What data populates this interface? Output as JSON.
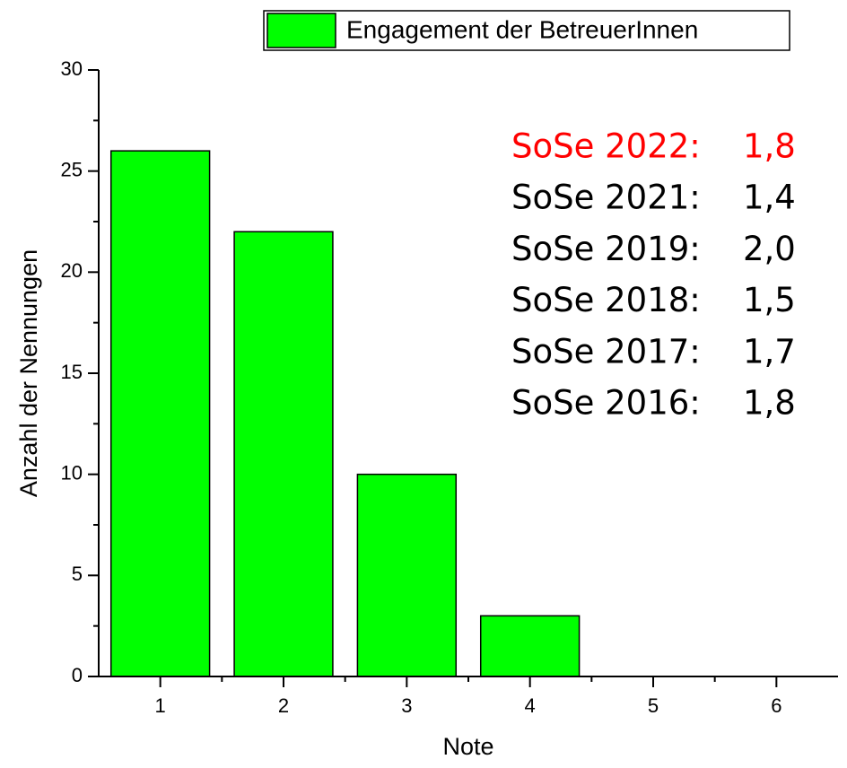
{
  "chart_data": {
    "type": "bar",
    "x": [
      1,
      2,
      3,
      4,
      5,
      6
    ],
    "series": [
      {
        "name": "Engagement der BetreuerInnen",
        "color": "#00ff00",
        "values": [
          26,
          22,
          10,
          3,
          0,
          0
        ]
      }
    ],
    "xlim": [
      0.5,
      6.5
    ],
    "xticks": [
      1,
      2,
      3,
      4,
      5,
      6
    ],
    "xticks_minor": [
      1.5,
      2.5,
      3.5,
      4.5,
      5.5
    ],
    "ylim": [
      0,
      30
    ],
    "yticks": [
      0,
      5,
      10,
      15,
      20,
      25,
      30
    ],
    "yticks_minor": [
      2.5,
      7.5,
      12.5,
      17.5,
      22.5,
      27.5
    ],
    "xlabel": "Note",
    "ylabel": "Anzahl der Nennungen",
    "legend": "top",
    "annotations": [
      {
        "term": "SoSe 2022:",
        "text": "1,8",
        "color": "#ff0000"
      },
      {
        "term": "SoSe 2021:",
        "text": "1,4",
        "color": "#000000"
      },
      {
        "term": "SoSe 2019:",
        "text": "2,0",
        "color": "#000000"
      },
      {
        "term": "SoSe 2018:",
        "text": "1,5",
        "color": "#000000"
      },
      {
        "term": "SoSe 2017:",
        "text": "1,7",
        "color": "#000000"
      },
      {
        "term": "SoSe 2016:",
        "text": "1,8",
        "color": "#000000"
      }
    ]
  }
}
